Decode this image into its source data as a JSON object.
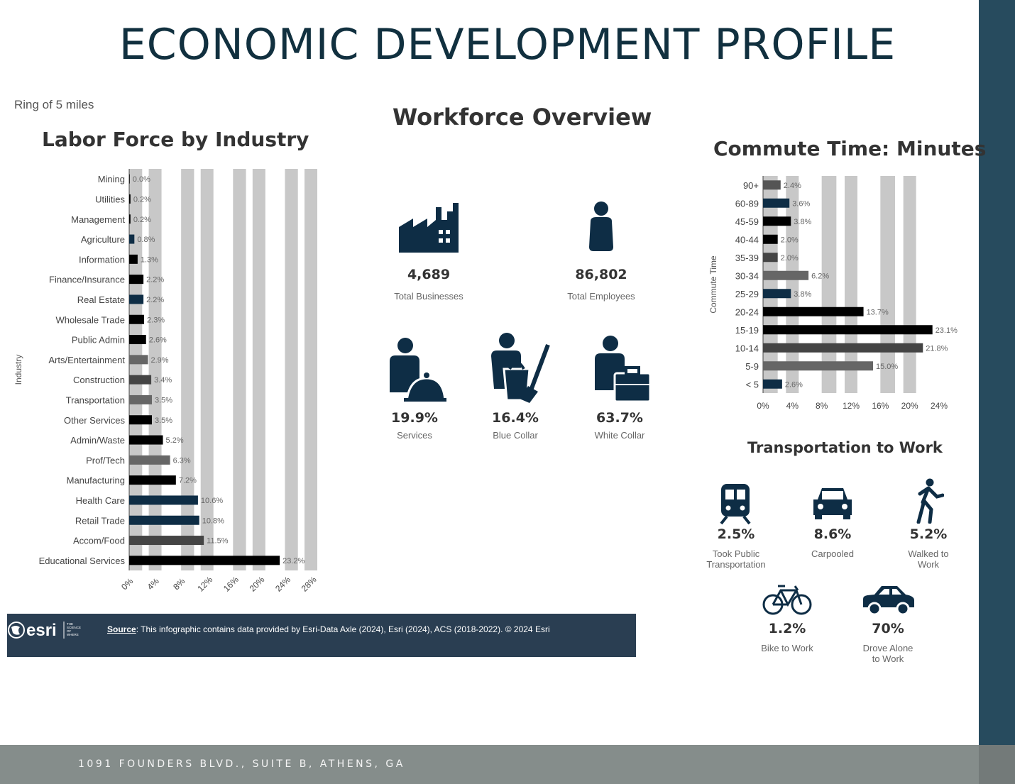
{
  "header": {
    "title": "ECONOMIC DEVELOPMENT PROFILE"
  },
  "footer": {
    "address": "1091 FOUNDERS BLVD., SUITE B, ATHENS, GA"
  },
  "colors": {
    "navy": "#0e2d45",
    "black": "#000000",
    "gray": "#666666",
    "light_gray": "#c8c8c8",
    "bar_frame": "#274b5e"
  },
  "ring_label": "Ring of 5 miles",
  "labor_title": "Labor Force by Industry",
  "workforce": {
    "title": "Workforce Overview",
    "businesses": {
      "value": "4,689",
      "label": "Total Businesses",
      "icon": "factory-icon"
    },
    "employees": {
      "value": "86,802",
      "label": "Total Employees",
      "icon": "person-icon"
    },
    "services": {
      "value": "19.9%",
      "label": "Services",
      "icon": "server-person-icon"
    },
    "blue_collar": {
      "value": "16.4%",
      "label": "Blue Collar",
      "icon": "janitor-icon"
    },
    "white_collar": {
      "value": "63.7%",
      "label": "White Collar",
      "icon": "briefcase-person-icon"
    }
  },
  "commute_title": "Commute Time: Minutes",
  "transport": {
    "title": "Transportation to Work",
    "items": [
      {
        "value": "2.5%",
        "label1": "Took Public",
        "label2": "Transportation",
        "icon": "train-icon"
      },
      {
        "value": "8.6%",
        "label1": "Carpooled",
        "label2": "",
        "icon": "car-front-icon"
      },
      {
        "value": "5.2%",
        "label1": "Walked to",
        "label2": "Work",
        "icon": "walking-person-icon"
      },
      {
        "value": "1.2%",
        "label1": "Bike to Work",
        "label2": "",
        "icon": "bicycle-icon"
      },
      {
        "value": "70%",
        "label1": "Drove Alone",
        "label2": "to Work",
        "icon": "car-side-icon"
      }
    ]
  },
  "source": {
    "label": "Source",
    "text": ": This infographic contains data provided by Esri-Data Axle (2024), Esri (2024), ACS (2018-2022). © 2024 Esri",
    "logo_text": "esri",
    "logo_tagline": [
      "THE",
      "SCIENCE",
      "OF",
      "WHERE"
    ]
  },
  "chart_data": [
    {
      "type": "bar",
      "orientation": "horizontal",
      "ylabel": "Industry",
      "xlim": [
        0,
        28
      ],
      "xticks": [
        "0%",
        "4%",
        "8%",
        "12%",
        "16%",
        "20%",
        "24%",
        "28%"
      ],
      "categories": [
        "Mining",
        "Utilities",
        "Management",
        "Agriculture",
        "Information",
        "Finance/Insurance",
        "Real Estate",
        "Wholesale Trade",
        "Public Admin",
        "Arts/Entertainment",
        "Construction",
        "Transportation",
        "Other Services",
        "Admin/Waste",
        "Prof/Tech",
        "Manufacturing",
        "Health Care",
        "Retail Trade",
        "Accom/Food",
        "Educational Services"
      ],
      "values": [
        0.0,
        0.2,
        0.2,
        0.8,
        1.3,
        2.2,
        2.2,
        2.3,
        2.6,
        2.9,
        3.4,
        3.5,
        3.5,
        5.2,
        6.3,
        7.2,
        10.6,
        10.8,
        11.5,
        23.2
      ],
      "data_labels": [
        "0.0%",
        "0.2%",
        "0.2%",
        "0.8%",
        "1.3%",
        "2.2%",
        "2.2%",
        "2.3%",
        "2.6%",
        "2.9%",
        "3.4%",
        "3.5%",
        "3.5%",
        "5.2%",
        "6.3%",
        "7.2%",
        "10.6%",
        "10.8%",
        "11.5%",
        "23.2%"
      ],
      "bar_colors": [
        "#000000",
        "#000000",
        "#000000",
        "#0e2d45",
        "#000000",
        "#000000",
        "#0e2d45",
        "#000000",
        "#000000",
        "#666666",
        "#444444",
        "#666666",
        "#000000",
        "#000000",
        "#666666",
        "#000000",
        "#0e2d45",
        "#0e2d45",
        "#444444",
        "#000000"
      ],
      "grid": true
    },
    {
      "type": "bar",
      "orientation": "horizontal",
      "ylabel": "Commute Time",
      "xlim": [
        0,
        24
      ],
      "xticks": [
        "0%",
        "4%",
        "8%",
        "12%",
        "16%",
        "20%",
        "24%"
      ],
      "categories": [
        "90+",
        "60-89",
        "45-59",
        "40-44",
        "35-39",
        "30-34",
        "25-29",
        "20-24",
        "15-19",
        "10-14",
        "5-9",
        "< 5"
      ],
      "values": [
        2.4,
        3.6,
        3.8,
        2.0,
        2.0,
        6.2,
        3.8,
        13.7,
        23.1,
        21.8,
        15.0,
        2.6
      ],
      "data_labels": [
        "2.4%",
        "3.6%",
        "3.8%",
        "2.0%",
        "2.0%",
        "6.2%",
        "3.8%",
        "13.7%",
        "23.1%",
        "21.8%",
        "15.0%",
        "2.6%"
      ],
      "bar_colors": [
        "#555555",
        "#0e2d45",
        "#000000",
        "#000000",
        "#444444",
        "#666666",
        "#0e2d45",
        "#000000",
        "#000000",
        "#444444",
        "#666666",
        "#0e2d45"
      ],
      "grid": true
    }
  ]
}
